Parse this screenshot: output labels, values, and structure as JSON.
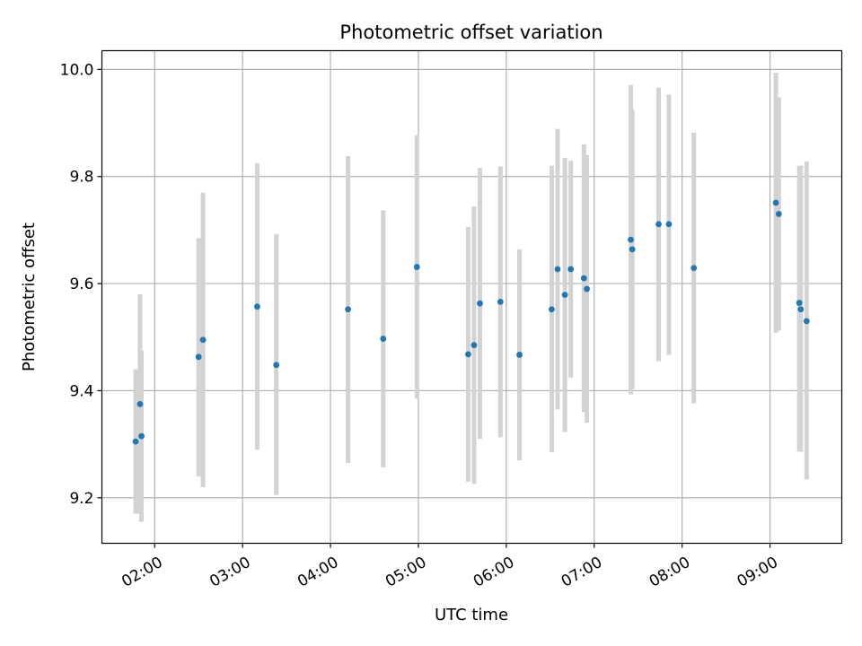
{
  "chart_data": {
    "type": "scatter",
    "title": "Photometric offset variation",
    "xlabel": "UTC time",
    "ylabel": "Photometric offset",
    "x_ticks": [
      "02:00",
      "03:00",
      "04:00",
      "05:00",
      "06:00",
      "07:00",
      "08:00",
      "09:00"
    ],
    "y_ticks": [
      "9.2",
      "9.4",
      "9.6",
      "9.8",
      "10.0"
    ],
    "xlim": [
      "01:24",
      "09:49"
    ],
    "ylim": [
      9.115,
      10.035
    ],
    "grid": true,
    "legend": "none",
    "colors": {
      "point": "#1f77b4",
      "error_bar": "#d3d3d3",
      "grid": "#b0b0b0"
    },
    "points": [
      {
        "t": "01:47",
        "y": 9.305,
        "err_lo": 9.17,
        "err_hi": 9.44
      },
      {
        "t": "01:50",
        "y": 9.375,
        "err_lo": 9.17,
        "err_hi": 9.58
      },
      {
        "t": "01:51",
        "y": 9.315,
        "err_lo": 9.155,
        "err_hi": 9.475
      },
      {
        "t": "02:30",
        "y": 9.463,
        "err_lo": 9.24,
        "err_hi": 9.685
      },
      {
        "t": "02:33",
        "y": 9.495,
        "err_lo": 9.22,
        "err_hi": 9.77
      },
      {
        "t": "03:10",
        "y": 9.557,
        "err_lo": 9.29,
        "err_hi": 9.825
      },
      {
        "t": "03:23",
        "y": 9.448,
        "err_lo": 9.205,
        "err_hi": 9.692
      },
      {
        "t": "04:12",
        "y": 9.552,
        "err_lo": 9.265,
        "err_hi": 9.838
      },
      {
        "t": "04:36",
        "y": 9.497,
        "err_lo": 9.257,
        "err_hi": 9.737
      },
      {
        "t": "04:59",
        "y": 9.631,
        "err_lo": 9.385,
        "err_hi": 9.877
      },
      {
        "t": "05:34",
        "y": 9.468,
        "err_lo": 9.23,
        "err_hi": 9.706
      },
      {
        "t": "05:38",
        "y": 9.485,
        "err_lo": 9.226,
        "err_hi": 9.744
      },
      {
        "t": "05:42",
        "y": 9.563,
        "err_lo": 9.31,
        "err_hi": 9.816
      },
      {
        "t": "05:56",
        "y": 9.566,
        "err_lo": 9.313,
        "err_hi": 9.819
      },
      {
        "t": "06:09",
        "y": 9.467,
        "err_lo": 9.27,
        "err_hi": 9.664
      },
      {
        "t": "06:31",
        "y": 9.552,
        "err_lo": 9.285,
        "err_hi": 9.82
      },
      {
        "t": "06:35",
        "y": 9.627,
        "err_lo": 9.365,
        "err_hi": 9.889
      },
      {
        "t": "06:40",
        "y": 9.579,
        "err_lo": 9.323,
        "err_hi": 9.835
      },
      {
        "t": "06:44",
        "y": 9.627,
        "err_lo": 9.424,
        "err_hi": 9.83
      },
      {
        "t": "06:53",
        "y": 9.61,
        "err_lo": 9.36,
        "err_hi": 9.86
      },
      {
        "t": "06:55",
        "y": 9.59,
        "err_lo": 9.34,
        "err_hi": 9.84
      },
      {
        "t": "07:25",
        "y": 9.682,
        "err_lo": 9.393,
        "err_hi": 9.971
      },
      {
        "t": "07:26",
        "y": 9.664,
        "err_lo": 9.403,
        "err_hi": 9.925
      },
      {
        "t": "07:44",
        "y": 9.711,
        "err_lo": 9.455,
        "err_hi": 9.966
      },
      {
        "t": "07:51",
        "y": 9.711,
        "err_lo": 9.467,
        "err_hi": 9.953
      },
      {
        "t": "08:08",
        "y": 9.629,
        "err_lo": 9.376,
        "err_hi": 9.882
      },
      {
        "t": "09:04",
        "y": 9.751,
        "err_lo": 9.508,
        "err_hi": 9.994
      },
      {
        "t": "09:06",
        "y": 9.73,
        "err_lo": 9.512,
        "err_hi": 9.948
      },
      {
        "t": "09:20",
        "y": 9.564,
        "err_lo": 9.286,
        "err_hi": 9.82
      },
      {
        "t": "09:21",
        "y": 9.552,
        "err_lo": 9.286,
        "err_hi": 9.82
      },
      {
        "t": "09:25",
        "y": 9.53,
        "err_lo": 9.234,
        "err_hi": 9.828
      }
    ]
  }
}
